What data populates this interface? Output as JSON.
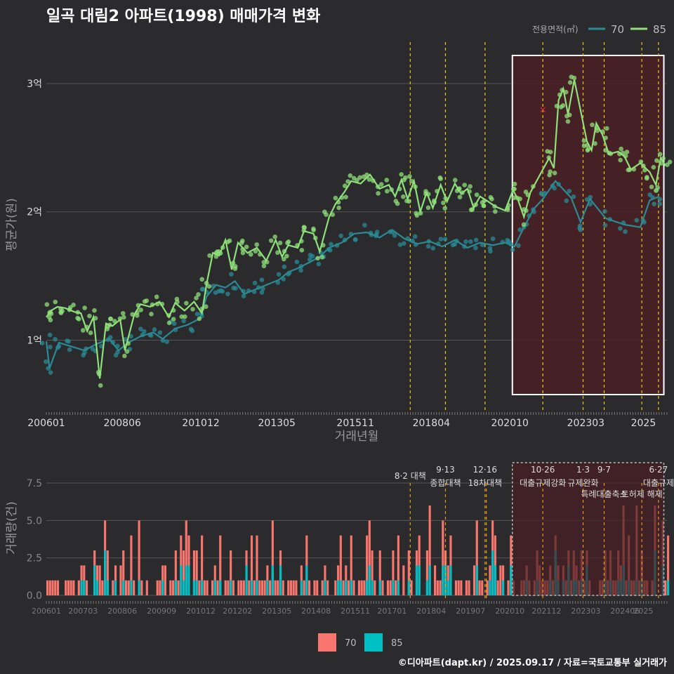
{
  "title": "일곡 대림2 아파트(1998) 매매가격 변화",
  "footer": "©디아파트(dapt.kr) / 2025.09.17 / 자료=국토교통부 실거래가",
  "colors": {
    "s70_line": "#2a8b95",
    "s85_line": "#8fe07a",
    "bar70": "#f8766d",
    "bar85": "#00bfc4",
    "policy_line": "#e6c619",
    "highlight_fill": "#4a1f24",
    "highlight_border": "#ffffff",
    "background": "#2b2b2d",
    "grid": "#555555",
    "text": "#dddddd",
    "outlier": "#e03030"
  },
  "chart_data": [
    {
      "type": "line",
      "title": "일곡 대림2 아파트(1998) 매매가격 변화",
      "xlabel": "거래년월",
      "ylabel": "평균가(원)",
      "x_ticks": [
        "200601",
        "200806",
        "201012",
        "201305",
        "201511",
        "201804",
        "202010",
        "202303",
        "2025"
      ],
      "y_ticks": [
        {
          "value": 1,
          "label": "1억"
        },
        {
          "value": 2,
          "label": "2억"
        },
        {
          "value": 3,
          "label": "3억"
        }
      ],
      "ylim": [
        0.45,
        3.35
      ],
      "xlim": [
        2006.0,
        2025.75
      ],
      "legend": {
        "title": "전용면적(㎡)",
        "position": "top-right",
        "entries": [
          "70",
          "85"
        ]
      },
      "highlight_range": [
        2020.83,
        2025.65
      ],
      "policy_dates": [
        2017.58,
        2018.7,
        2019.96,
        2021.8,
        2023.08,
        2023.75,
        2024.95,
        2025.48
      ],
      "outlier": {
        "x": 2021.8,
        "y": 2.8
      },
      "series": [
        {
          "name": "70",
          "points": [
            [
              2006.0,
              0.99
            ],
            [
              2006.1,
              0.78
            ],
            [
              2006.4,
              0.98
            ],
            [
              2006.8,
              0.95
            ],
            [
              2007.2,
              0.92
            ],
            [
              2007.6,
              0.97
            ],
            [
              2008.0,
              1.01
            ],
            [
              2008.3,
              0.92
            ],
            [
              2008.6,
              0.98
            ],
            [
              2009.0,
              1.03
            ],
            [
              2009.4,
              1.06
            ],
            [
              2009.7,
              1.01
            ],
            [
              2010.1,
              1.09
            ],
            [
              2010.5,
              1.12
            ],
            [
              2010.9,
              1.17
            ],
            [
              2011.1,
              1.34
            ],
            [
              2011.4,
              1.43
            ],
            [
              2011.7,
              1.41
            ],
            [
              2012.0,
              1.46
            ],
            [
              2012.3,
              1.36
            ],
            [
              2012.7,
              1.4
            ],
            [
              2013.0,
              1.43
            ],
            [
              2013.4,
              1.47
            ],
            [
              2013.7,
              1.53
            ],
            [
              2014.0,
              1.56
            ],
            [
              2014.4,
              1.61
            ],
            [
              2014.7,
              1.65
            ],
            [
              2015.0,
              1.72
            ],
            [
              2015.4,
              1.76
            ],
            [
              2015.8,
              1.83
            ],
            [
              2016.2,
              1.84
            ],
            [
              2016.6,
              1.8
            ],
            [
              2017.0,
              1.86
            ],
            [
              2017.4,
              1.79
            ],
            [
              2017.8,
              1.75
            ],
            [
              2018.2,
              1.77
            ],
            [
              2018.6,
              1.73
            ],
            [
              2019.0,
              1.78
            ],
            [
              2019.4,
              1.72
            ],
            [
              2019.8,
              1.76
            ],
            [
              2020.2,
              1.74
            ],
            [
              2020.6,
              1.76
            ],
            [
              2020.9,
              1.73
            ],
            [
              2021.2,
              1.88
            ],
            [
              2021.5,
              2.02
            ],
            [
              2021.8,
              2.1
            ],
            [
              2022.2,
              2.24
            ],
            [
              2022.7,
              2.11
            ],
            [
              2023.0,
              1.92
            ],
            [
              2023.3,
              2.1
            ],
            [
              2023.8,
              1.95
            ],
            [
              2024.4,
              1.9
            ],
            [
              2024.9,
              1.88
            ],
            [
              2025.2,
              2.09
            ],
            [
              2025.5,
              2.12
            ]
          ]
        },
        {
          "name": "85",
          "points": [
            [
              2006.0,
              1.18
            ],
            [
              2006.15,
              1.23
            ],
            [
              2006.35,
              1.26
            ],
            [
              2006.6,
              1.25
            ],
            [
              2006.9,
              1.22
            ],
            [
              2007.1,
              1.21
            ],
            [
              2007.3,
              1.07
            ],
            [
              2007.5,
              1.18
            ],
            [
              2007.7,
              0.7
            ],
            [
              2007.9,
              1.13
            ],
            [
              2008.1,
              1.11
            ],
            [
              2008.35,
              1.16
            ],
            [
              2008.5,
              0.92
            ],
            [
              2008.8,
              1.2
            ],
            [
              2009.0,
              1.28
            ],
            [
              2009.3,
              1.26
            ],
            [
              2009.6,
              1.3
            ],
            [
              2009.9,
              1.18
            ],
            [
              2010.1,
              1.29
            ],
            [
              2010.4,
              1.23
            ],
            [
              2010.7,
              1.3
            ],
            [
              2010.95,
              1.21
            ],
            [
              2011.1,
              1.44
            ],
            [
              2011.3,
              1.68
            ],
            [
              2011.5,
              1.66
            ],
            [
              2011.7,
              1.78
            ],
            [
              2011.9,
              1.55
            ],
            [
              2012.1,
              1.76
            ],
            [
              2012.4,
              1.68
            ],
            [
              2012.7,
              1.72
            ],
            [
              2013.0,
              1.62
            ],
            [
              2013.3,
              1.78
            ],
            [
              2013.5,
              1.65
            ],
            [
              2013.7,
              1.74
            ],
            [
              2014.0,
              1.72
            ],
            [
              2014.2,
              1.85
            ],
            [
              2014.5,
              1.83
            ],
            [
              2014.7,
              1.69
            ],
            [
              2015.0,
              1.96
            ],
            [
              2015.2,
              2.06
            ],
            [
              2015.5,
              2.16
            ],
            [
              2015.7,
              2.24
            ],
            [
              2016.0,
              2.22
            ],
            [
              2016.3,
              2.29
            ],
            [
              2016.6,
              2.18
            ],
            [
              2016.9,
              2.21
            ],
            [
              2017.1,
              2.12
            ],
            [
              2017.3,
              2.25
            ],
            [
              2017.5,
              2.1
            ],
            [
              2017.7,
              2.24
            ],
            [
              2017.9,
              2.0
            ],
            [
              2018.1,
              2.15
            ],
            [
              2018.3,
              2.03
            ],
            [
              2018.55,
              2.21
            ],
            [
              2018.75,
              2.08
            ],
            [
              2019.0,
              2.22
            ],
            [
              2019.2,
              2.14
            ],
            [
              2019.4,
              2.18
            ],
            [
              2019.6,
              2.03
            ],
            [
              2019.8,
              2.12
            ],
            [
              2020.0,
              2.09
            ],
            [
              2020.3,
              2.04
            ],
            [
              2020.6,
              2.01
            ],
            [
              2020.85,
              2.17
            ],
            [
              2021.0,
              2.1
            ],
            [
              2021.2,
              1.96
            ],
            [
              2021.4,
              2.15
            ],
            [
              2022.0,
              2.42
            ],
            [
              2022.15,
              2.34
            ],
            [
              2022.3,
              2.87
            ],
            [
              2022.45,
              2.96
            ],
            [
              2022.6,
              2.76
            ],
            [
              2022.8,
              3.03
            ],
            [
              2023.2,
              2.55
            ],
            [
              2023.35,
              2.48
            ],
            [
              2023.5,
              2.69
            ],
            [
              2023.7,
              2.6
            ],
            [
              2023.9,
              2.45
            ],
            [
              2024.2,
              2.47
            ],
            [
              2024.4,
              2.43
            ],
            [
              2024.6,
              2.33
            ],
            [
              2024.9,
              2.38
            ],
            [
              2025.2,
              2.31
            ],
            [
              2025.4,
              2.21
            ],
            [
              2025.55,
              2.42
            ],
            [
              2025.7,
              2.36
            ]
          ]
        }
      ]
    },
    {
      "type": "bar",
      "xlabel": "",
      "ylabel": "거래량(건)",
      "x_ticks": [
        "200601",
        "200703",
        "200806",
        "200909",
        "201012",
        "201202",
        "201305",
        "201408",
        "201511",
        "201701",
        "201804",
        "201907",
        "202010",
        "202112",
        "202303",
        "202406",
        "2025"
      ],
      "y_ticks": [
        {
          "value": 0,
          "label": "0.0"
        },
        {
          "value": 2.5,
          "label": "2.5"
        },
        {
          "value": 5,
          "label": "5.0"
        },
        {
          "value": 7.5,
          "label": "7.5"
        }
      ],
      "ylim": [
        0,
        9
      ],
      "xlim": [
        2006.0,
        2025.75
      ],
      "legend": {
        "position": "bottom",
        "entries": [
          "70",
          "85"
        ]
      },
      "highlight_range": [
        2020.83,
        2025.65
      ],
      "policy_dates": [
        2017.58,
        2018.7,
        2019.96,
        2020.0,
        2021.8,
        2023.08,
        2023.75,
        2024.95,
        2025.48
      ],
      "annotations": [
        {
          "x": 2017.58,
          "line1": "8·2 대책",
          "line2": ""
        },
        {
          "x": 2018.7,
          "line1": "9·13",
          "line2": "종합대책"
        },
        {
          "x": 2019.96,
          "line1": "12·16",
          "line2": "18차대책"
        },
        {
          "x": 2021.8,
          "line1": "10·26",
          "line2": "대출규제강화"
        },
        {
          "x": 2023.08,
          "line1": "1·3",
          "line2": "규제완화"
        },
        {
          "x": 2023.75,
          "line1": "9·7",
          "line2": "특례대출축소"
        },
        {
          "x": 2024.95,
          "line1": "",
          "line2": "토허제 해제"
        },
        {
          "x": 2025.48,
          "line1": "6·27",
          "line2": "대출규제"
        }
      ]
    }
  ]
}
